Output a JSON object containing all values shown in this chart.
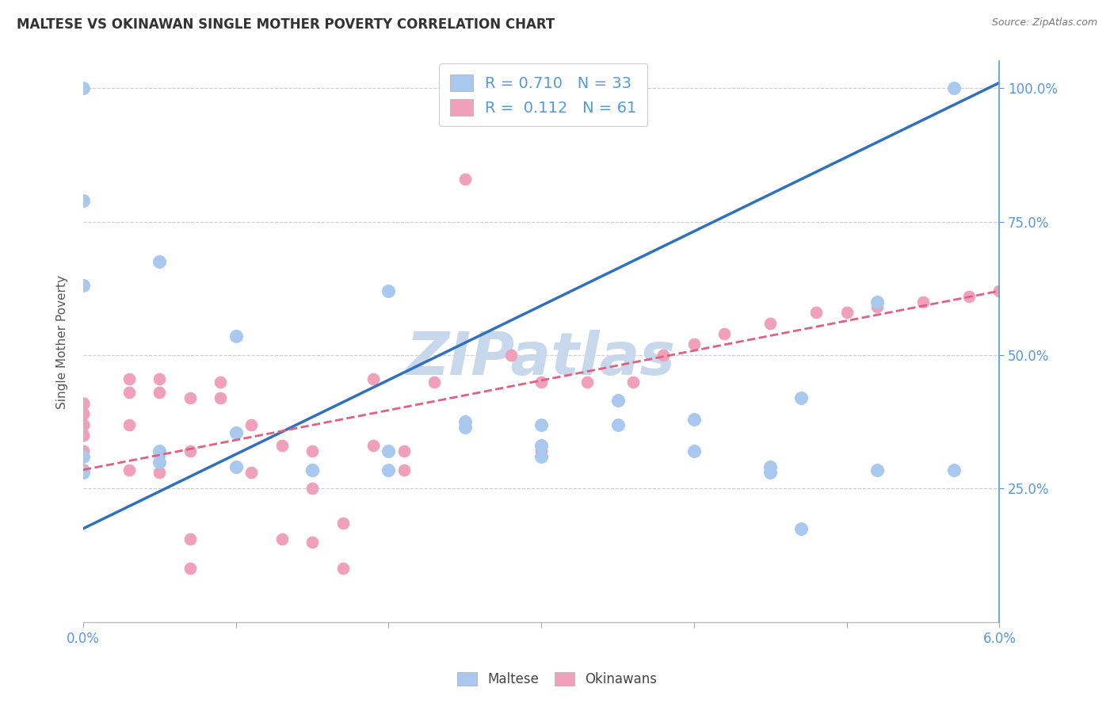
{
  "title": "MALTESE VS OKINAWAN SINGLE MOTHER POVERTY CORRELATION CHART",
  "source": "Source: ZipAtlas.com",
  "ylabel": "Single Mother Poverty",
  "yticks": [
    "25.0%",
    "50.0%",
    "75.0%",
    "100.0%"
  ],
  "ytick_vals": [
    0.25,
    0.5,
    0.75,
    1.0
  ],
  "xlim": [
    0.0,
    0.06
  ],
  "ylim": [
    0.0,
    1.05
  ],
  "blue_color": "#A8C8F0",
  "pink_color": "#F0A0BA",
  "trendline_blue_color": "#3070C0",
  "trendline_pink_color": "#E06080",
  "watermark": "ZIPatlas",
  "watermark_color": "#C8D8EC",
  "blue_trendline": [
    0.0,
    0.175,
    0.06,
    1.01
  ],
  "pink_trendline": [
    0.0,
    0.285,
    0.06,
    0.62
  ],
  "blue_points_x": [
    0.0,
    0.0,
    0.0,
    0.0,
    0.0,
    0.005,
    0.005,
    0.005,
    0.01,
    0.01,
    0.01,
    0.015,
    0.015,
    0.02,
    0.02,
    0.02,
    0.025,
    0.025,
    0.03,
    0.03,
    0.03,
    0.035,
    0.035,
    0.04,
    0.04,
    0.045,
    0.045,
    0.057,
    0.057,
    0.047,
    0.047,
    0.052,
    0.052
  ],
  "blue_points_y": [
    1.0,
    0.79,
    0.63,
    0.31,
    0.28,
    0.675,
    0.32,
    0.3,
    0.535,
    0.355,
    0.29,
    0.285,
    0.285,
    0.62,
    0.32,
    0.285,
    0.375,
    0.365,
    0.37,
    0.33,
    0.31,
    0.415,
    0.37,
    0.38,
    0.32,
    0.29,
    0.28,
    1.0,
    0.285,
    0.42,
    0.175,
    0.6,
    0.285
  ],
  "pink_points_x": [
    0.0,
    0.0,
    0.0,
    0.0,
    0.0,
    0.0,
    0.0,
    0.0,
    0.0,
    0.0,
    0.0,
    0.0,
    0.0,
    0.0,
    0.0,
    0.0,
    0.003,
    0.003,
    0.003,
    0.003,
    0.005,
    0.005,
    0.005,
    0.005,
    0.007,
    0.007,
    0.007,
    0.007,
    0.009,
    0.009,
    0.011,
    0.011,
    0.013,
    0.013,
    0.015,
    0.015,
    0.015,
    0.017,
    0.017,
    0.019,
    0.019,
    0.021,
    0.021,
    0.023,
    0.025,
    0.028,
    0.03,
    0.03,
    0.033,
    0.036,
    0.038,
    0.04,
    0.042,
    0.045,
    0.048,
    0.05,
    0.052,
    0.055,
    0.058,
    0.06
  ],
  "pink_points_y": [
    0.41,
    0.41,
    0.41,
    0.39,
    0.39,
    0.37,
    0.37,
    0.37,
    0.35,
    0.35,
    0.32,
    0.32,
    0.285,
    0.285,
    0.285,
    0.285,
    0.455,
    0.43,
    0.37,
    0.285,
    0.455,
    0.43,
    0.315,
    0.28,
    0.42,
    0.32,
    0.155,
    0.1,
    0.45,
    0.42,
    0.37,
    0.28,
    0.33,
    0.155,
    0.32,
    0.25,
    0.15,
    0.185,
    0.1,
    0.455,
    0.33,
    0.32,
    0.285,
    0.45,
    0.83,
    0.5,
    0.45,
    0.32,
    0.45,
    0.45,
    0.5,
    0.52,
    0.54,
    0.56,
    0.58,
    0.58,
    0.59,
    0.6,
    0.61,
    0.62
  ]
}
